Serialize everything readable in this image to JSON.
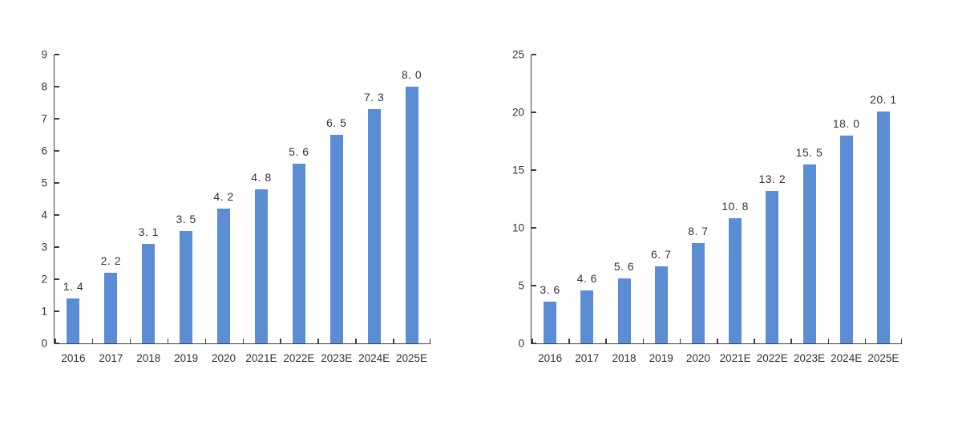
{
  "page": {
    "background": "#ffffff"
  },
  "colors": {
    "bar": "#5b8dd5",
    "axis": "#3f3f3f",
    "text": "#333333"
  },
  "chart_data": [
    {
      "type": "bar",
      "name": "left-bar-chart",
      "title": "",
      "xlabel": "",
      "ylabel": "",
      "legend": "none",
      "grid": false,
      "categories": [
        "2016",
        "2017",
        "2018",
        "2019",
        "2020",
        "2021E",
        "2022E",
        "2023E",
        "2024E",
        "2025E"
      ],
      "values": [
        1.4,
        2.2,
        3.1,
        3.5,
        4.2,
        4.8,
        5.6,
        6.5,
        7.3,
        8.0
      ],
      "value_labels": [
        "1. 4",
        "2. 2",
        "3. 1",
        "3. 5",
        "4. 2",
        "4. 8",
        "5. 6",
        "6. 5",
        "7. 3",
        "8. 0"
      ],
      "ylim": [
        0,
        9
      ],
      "ytick_values": [
        0,
        1,
        2,
        3,
        4,
        5,
        6,
        7,
        8,
        9
      ],
      "ytick_labels": [
        "0",
        "1",
        "2",
        "3",
        "4",
        "5",
        "6",
        "7",
        "8",
        "9"
      ]
    },
    {
      "type": "bar",
      "name": "right-bar-chart",
      "title": "",
      "xlabel": "",
      "ylabel": "",
      "legend": "none",
      "grid": false,
      "categories": [
        "2016",
        "2017",
        "2018",
        "2019",
        "2020",
        "2021E",
        "2022E",
        "2023E",
        "2024E",
        "2025E"
      ],
      "values": [
        3.6,
        4.6,
        5.6,
        6.7,
        8.7,
        10.8,
        13.2,
        15.5,
        18.0,
        20.1
      ],
      "value_labels": [
        "3. 6",
        "4. 6",
        "5. 6",
        "6. 7",
        "8. 7",
        "10. 8",
        "13. 2",
        "15. 5",
        "18. 0",
        "20. 1"
      ],
      "ylim": [
        0,
        25
      ],
      "ytick_values": [
        0,
        5,
        10,
        15,
        20,
        25
      ],
      "ytick_labels": [
        "0",
        "5",
        "10",
        "15",
        "20",
        "25"
      ]
    }
  ]
}
